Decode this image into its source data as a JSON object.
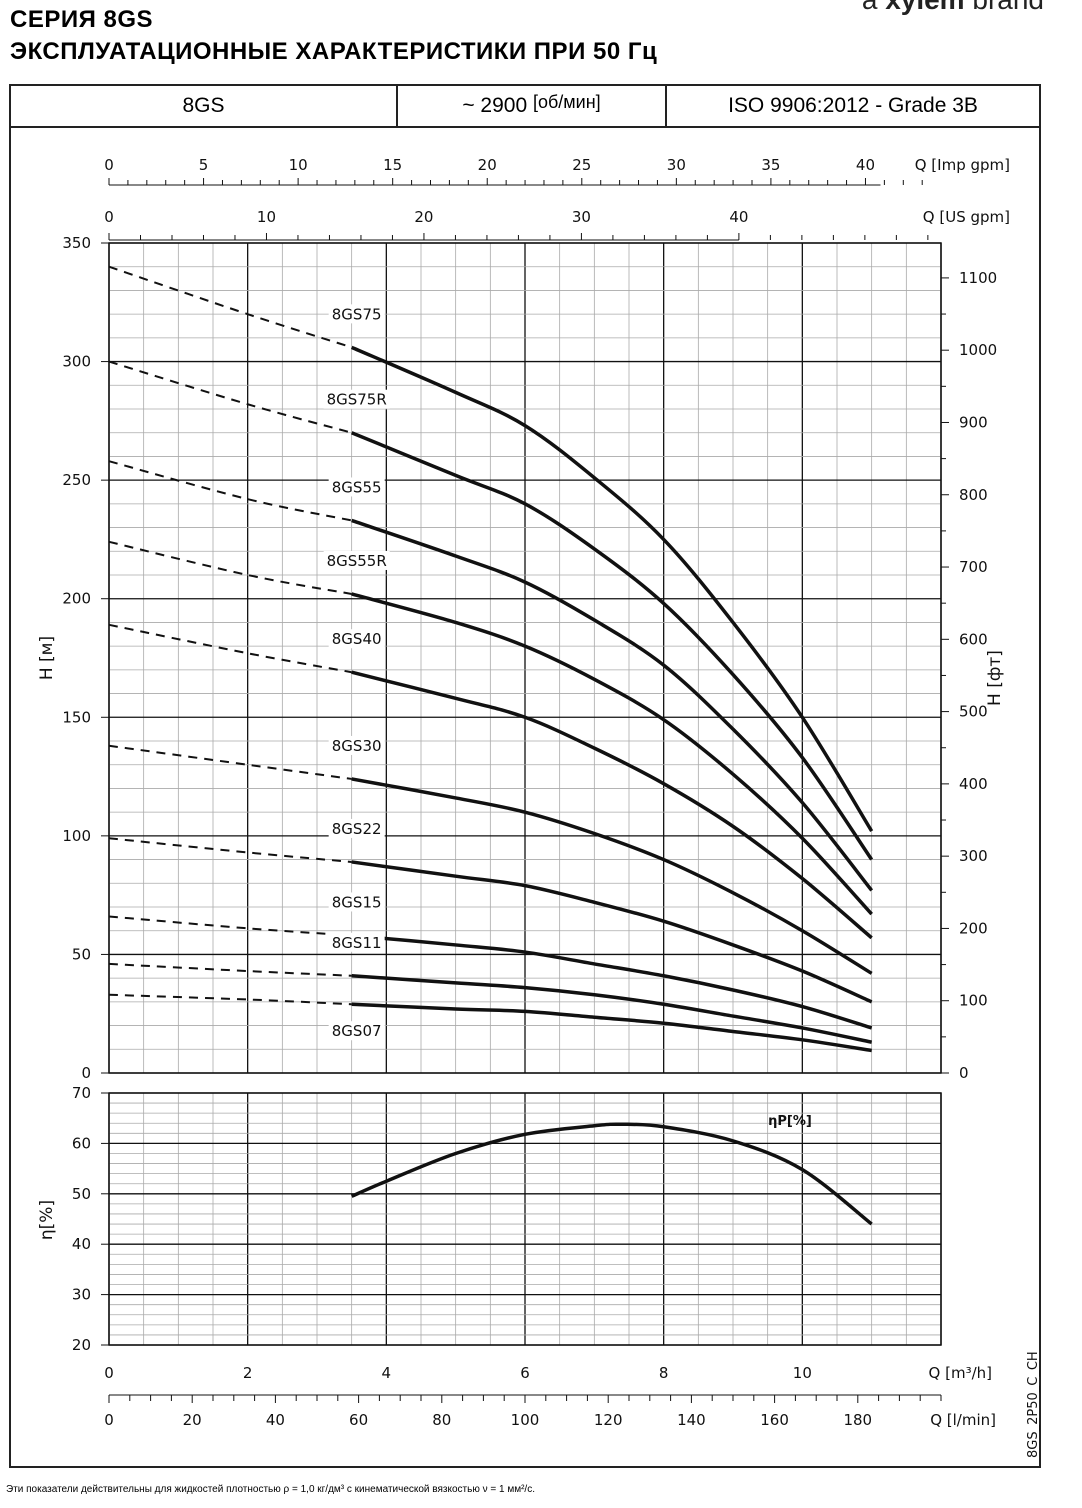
{
  "brand": {
    "prefix": "a",
    "name": "xylem",
    "suffix": "brand"
  },
  "title": {
    "line1": "СЕРИЯ 8GS",
    "line2": "ЭКСПЛУАТАЦИОННЫЕ ХАРАКТЕРИСТИКИ ПРИ 50 Гц"
  },
  "header": {
    "model": "8GS",
    "speed": "~ 2900",
    "speed_unit": "[об/мин]",
    "standard": "ISO 9906:2012 - Grade 3B"
  },
  "footnote": "Эти показатели действительны для жидкостей плотностью ρ = 1,0 кг/дм³ с кинематической вязкостью ν = 1 мм²/с.",
  "code": "8GS_2P50_C_CH",
  "chart_data": [
    {
      "type": "line",
      "xlabel": "Q [m³/h]",
      "ylabel": "H [м]",
      "ylabel_right": "H [фт]",
      "xlim": [
        0,
        12
      ],
      "ylim": [
        0,
        350
      ],
      "ylim_right_ft": [
        0,
        1148
      ],
      "grid": true,
      "x_ticks": [
        0,
        2,
        4,
        6,
        8,
        10
      ],
      "y_ticks": [
        0,
        50,
        100,
        150,
        200,
        250,
        300,
        350
      ],
      "y_right_ticks": [
        0,
        100,
        200,
        300,
        400,
        500,
        600,
        700,
        800,
        900,
        1000,
        1100
      ],
      "secondary_x_axes": [
        {
          "label": "Q [Imp gpm]",
          "ticks": [
            0,
            5,
            10,
            15,
            20,
            25,
            30,
            35,
            40
          ]
        },
        {
          "label": "Q [US gpm]",
          "ticks": [
            0,
            10,
            20,
            30,
            40
          ]
        },
        {
          "label": "Q [l/min]",
          "ticks": [
            0,
            20,
            40,
            60,
            80,
            100,
            120,
            140,
            160,
            180
          ]
        }
      ],
      "dashed_below_x": 3.5,
      "x": [
        0,
        2,
        3.5,
        5,
        6,
        7,
        8,
        9,
        10,
        11
      ],
      "series": [
        {
          "name": "8GS75",
          "values": [
            340,
            320,
            306,
            287,
            273,
            251,
            225,
            190,
            150,
            102
          ]
        },
        {
          "name": "8GS75R",
          "values": [
            300,
            282,
            270,
            252,
            240,
            221,
            198,
            168,
            133,
            90
          ]
        },
        {
          "name": "8GS55",
          "values": [
            258,
            242,
            233,
            218,
            207,
            191,
            172,
            145,
            114,
            77
          ]
        },
        {
          "name": "8GS55R",
          "values": [
            224,
            210,
            202,
            190,
            180,
            166,
            149,
            126,
            99,
            67
          ]
        },
        {
          "name": "8GS40",
          "values": [
            189,
            177,
            169,
            158,
            150,
            137,
            122,
            104,
            82,
            57
          ]
        },
        {
          "name": "8GS30",
          "values": [
            138,
            130,
            124,
            116,
            110,
            101,
            90,
            76,
            60,
            42
          ]
        },
        {
          "name": "8GS22",
          "values": [
            99,
            93,
            89,
            83,
            79,
            72,
            64,
            54,
            43,
            30
          ]
        },
        {
          "name": "8GS15",
          "values": [
            66,
            61,
            58,
            54,
            51,
            46,
            41,
            35,
            28,
            19
          ]
        },
        {
          "name": "8GS11",
          "values": [
            46,
            43,
            41,
            38,
            36,
            33,
            29,
            24,
            19,
            13
          ]
        },
        {
          "name": "8GS07",
          "values": [
            33,
            31,
            29,
            27,
            26,
            23.5,
            21,
            17.5,
            14,
            9.5
          ]
        }
      ]
    },
    {
      "type": "line",
      "xlabel": "Q [m³/h]",
      "ylabel": "η[%]",
      "xlim": [
        0,
        12
      ],
      "ylim": [
        20,
        70
      ],
      "grid": true,
      "y_ticks": [
        20,
        30,
        40,
        50,
        60,
        70
      ],
      "series": [
        {
          "name": "ηP[%]",
          "x": [
            3.5,
            4,
            5,
            6,
            7,
            7.4,
            8,
            9,
            10,
            11
          ],
          "values": [
            49.5,
            52.5,
            58,
            61.8,
            63.5,
            63.8,
            63.3,
            60.5,
            54.8,
            44
          ]
        }
      ]
    }
  ]
}
